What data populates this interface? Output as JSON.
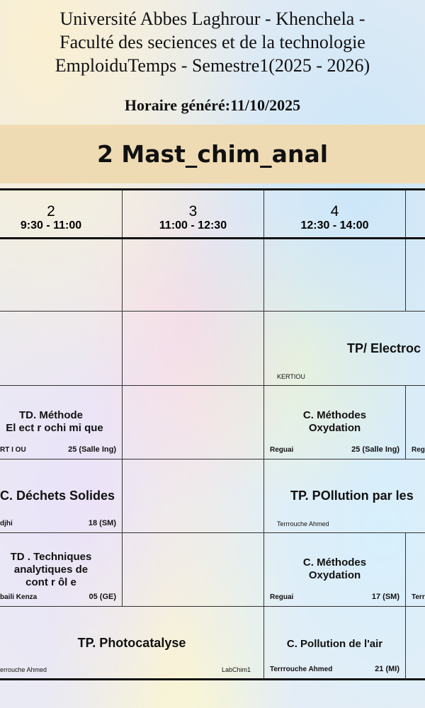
{
  "header": {
    "line1": "Université Abbes Laghrour - Khenchela -",
    "line2": "Faculté des seciences et de la technologie",
    "line3": "EmploiduTemps - Semestre1(2025 - 2026)",
    "generated": "Horaire généré:11/10/2025"
  },
  "group": "2 Mast_chim_anal",
  "columns": [
    {
      "num": "2",
      "time": "9:30 - 11:00"
    },
    {
      "num": "3",
      "time": "11:00 - 12:30"
    },
    {
      "num": "4",
      "time": "12:30 - 14:00"
    }
  ],
  "sessions": {
    "r2_tp_electro": {
      "title": "TP/ Electroc",
      "teacher": "KERTIOU"
    },
    "r3_td_methode": {
      "title1": "TD. Méthode",
      "title2": "El ect r ochi mi que",
      "teacher": "RT I OU",
      "room": "25 (Salle Ing)"
    },
    "r3_c_methodes": {
      "title1": "C. Méthodes",
      "title2": "Oxydation",
      "teacher": "Reguai",
      "room": "25 (Salle Ing)"
    },
    "r3_col5": {
      "teacher": "Reg"
    },
    "r4_c_dechets": {
      "title": "C. Déchets Solides",
      "teacher": "djhi",
      "room": "18 (SM)"
    },
    "r4_tp_pollution": {
      "title": "TP. POllution par les",
      "teacher": "Terrrouche Ahmed"
    },
    "r5_td_techniques": {
      "title1": "TD . Techniques",
      "title2": "analytiques de",
      "title3": "cont r ôl e",
      "teacher": "baili Kenza",
      "room": "05 (GE)"
    },
    "r5_c_methodes": {
      "title1": "C. Méthodes",
      "title2": "Oxydation",
      "teacher": "Reguai",
      "room": "17 (SM)"
    },
    "r5_col5": {
      "teacher": "Terr"
    },
    "r6_tp_photo": {
      "title": "TP. Photocatalyse",
      "teacher": "errouche Ahmed",
      "room": "LabChim1"
    },
    "r6_c_pollution_air": {
      "title": "C. Pollution de l'air",
      "teacher": "Terrrouche Ahmed",
      "room": "21 (MI)"
    }
  },
  "colors": {
    "band": "#efdbb3",
    "grid_line": "#333333"
  }
}
